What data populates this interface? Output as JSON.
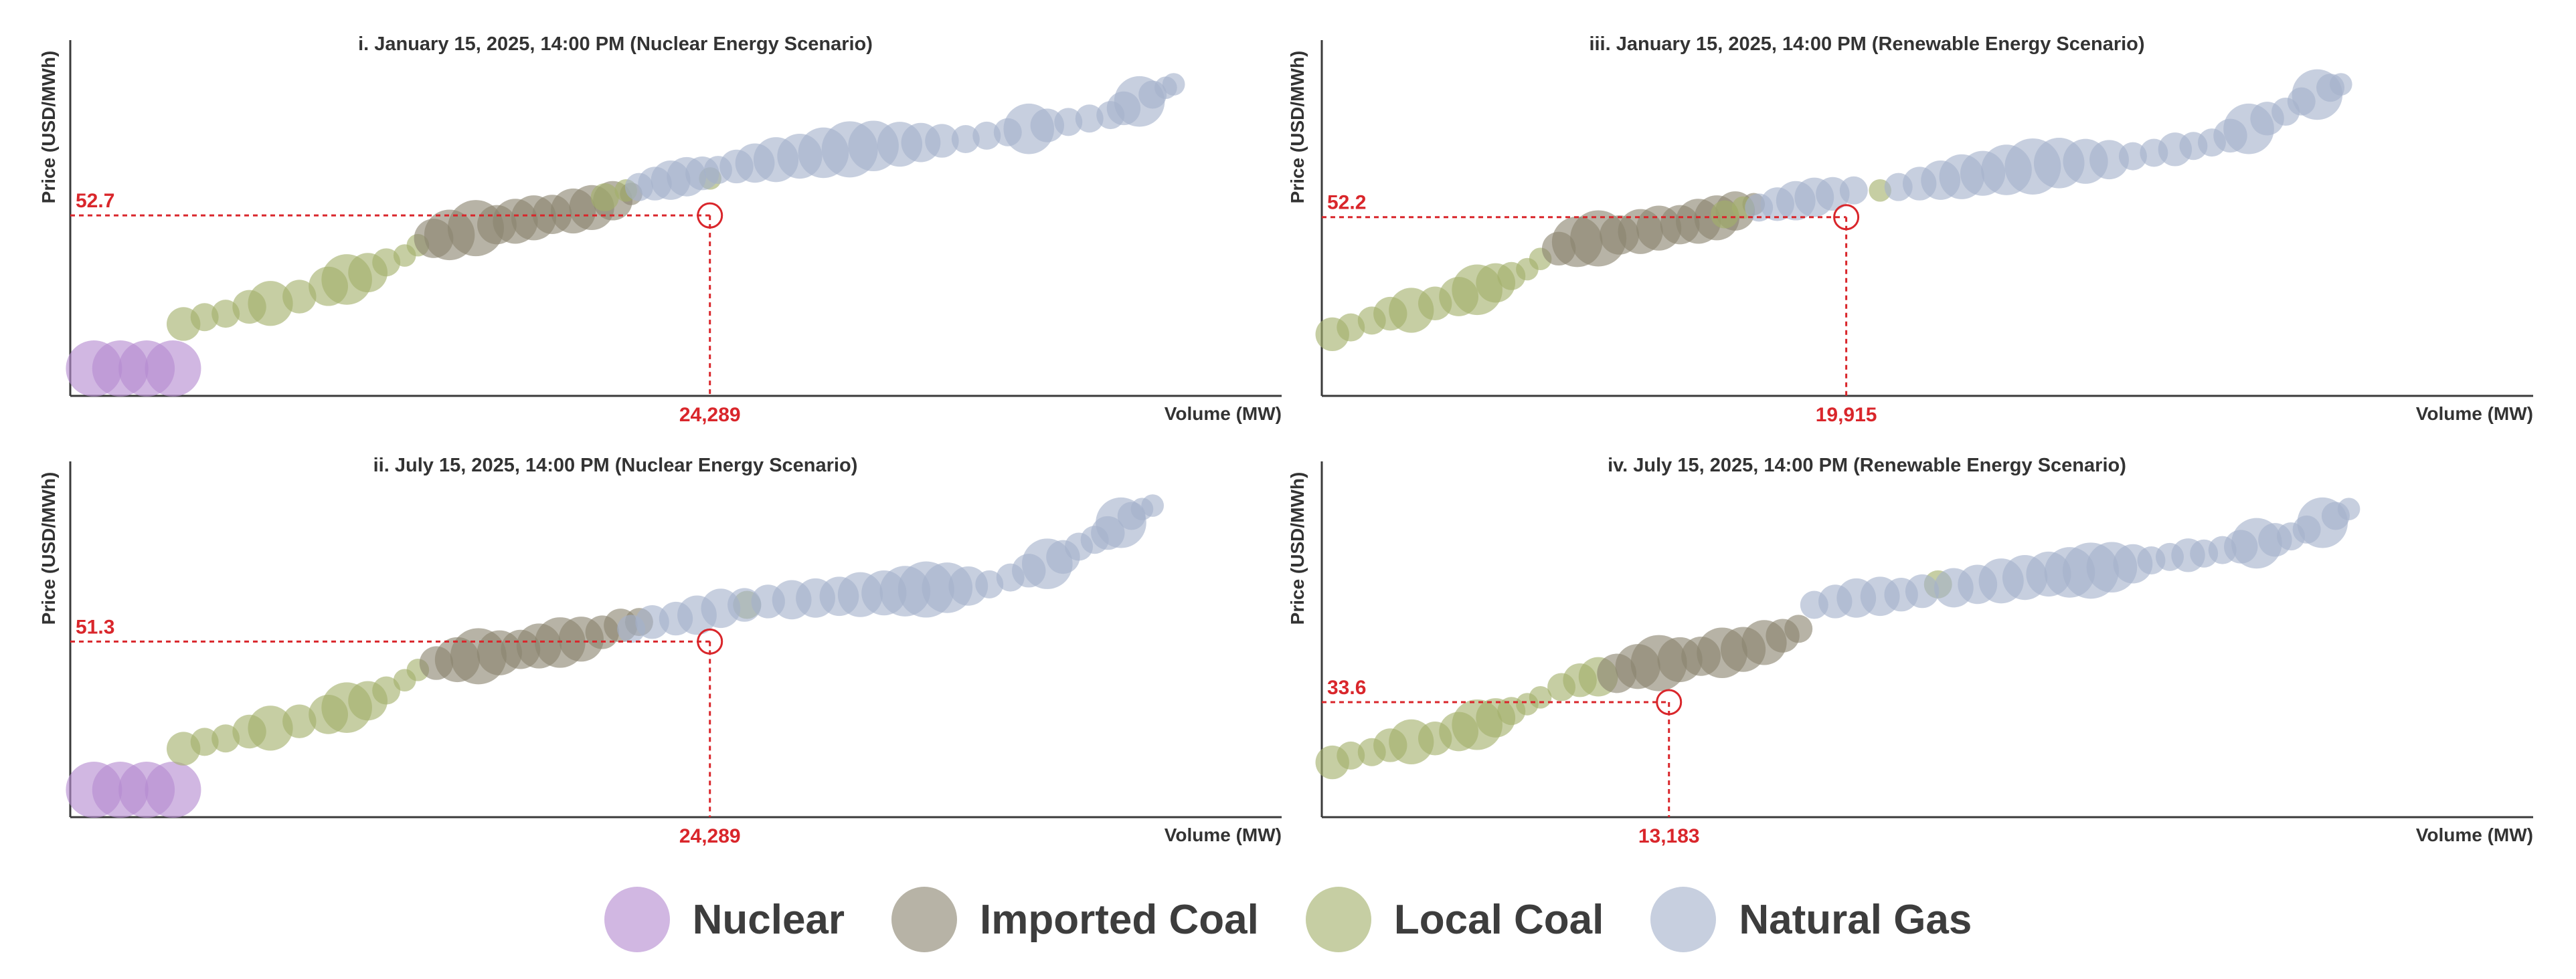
{
  "colors": {
    "nuclear": "#b48bd1",
    "imported_coal": "#8a8470",
    "local_coal": "#a3b06b",
    "natural_gas": "#a4b2cc",
    "marker": "#d9262b",
    "axis": "#3a3a3a"
  },
  "legend": {
    "items": [
      {
        "key": "nuclear",
        "label": "Nuclear"
      },
      {
        "key": "imported_coal",
        "label": "Imported Coal"
      },
      {
        "key": "local_coal",
        "label": "Local Coal"
      },
      {
        "key": "natural_gas",
        "label": "Natural Gas"
      }
    ]
  },
  "chart_data": [
    {
      "type": "scatter",
      "title": "i. January 15, 2025, 14:00 PM (Nuclear Energy Scenario)",
      "xlabel": "Volume (MW)",
      "ylabel": "Price (USD/MWh)",
      "xlim": [
        0,
        46000
      ],
      "ylim": [
        0,
        100
      ],
      "grid": false,
      "clearing_point": {
        "x": 24289,
        "y": 52.7,
        "x_label": "24,289",
        "y_label": "52.7"
      },
      "series": [
        {
          "fuel": "nuclear",
          "x": [
            900,
            1900,
            2900,
            3900
          ],
          "y": [
            8,
            8,
            8,
            8
          ],
          "size": [
            1.0,
            1.0,
            1.0,
            1.0
          ]
        },
        {
          "fuel": "local_coal",
          "x": [
            4300,
            5100,
            5900,
            6800,
            7600,
            8700,
            9800,
            10500,
            11300,
            12000,
            12700,
            13200
          ],
          "y": [
            21,
            23,
            24,
            26,
            27,
            29,
            32,
            34,
            36,
            39,
            41,
            44
          ],
          "size": [
            0.6,
            0.5,
            0.5,
            0.6,
            0.8,
            0.6,
            0.7,
            0.9,
            0.7,
            0.5,
            0.4,
            0.4
          ]
        },
        {
          "fuel": "imported_coal",
          "x": [
            13800,
            14400,
            15400,
            16200,
            16900,
            17600,
            18300,
            19100,
            19800,
            20600,
            21300
          ],
          "y": [
            46,
            47,
            49,
            50,
            51,
            52,
            53,
            54,
            55,
            57,
            59
          ],
          "size": [
            0.7,
            0.9,
            1.0,
            0.7,
            0.8,
            0.8,
            0.7,
            0.8,
            0.8,
            0.7,
            0.4
          ]
        },
        {
          "fuel": "local_coal",
          "x": [
            20300,
            21100,
            24300
          ],
          "y": [
            58,
            60,
            63.5
          ],
          "size": [
            0.5,
            0.4,
            0.4
          ]
        },
        {
          "fuel": "natural_gas",
          "x": [
            21600,
            22200,
            22800,
            23400,
            24000,
            24600,
            25300,
            26000,
            26800,
            27700,
            28600,
            29600,
            30500,
            31500,
            32300,
            33100,
            34000,
            34800,
            35600,
            36400,
            37100,
            37900,
            38700,
            39500,
            40000,
            40600,
            41100,
            41600,
            41900
          ],
          "y": [
            61,
            62,
            63,
            64,
            65,
            66,
            67,
            68,
            69,
            70,
            71,
            72,
            73,
            73.5,
            74,
            74.5,
            75,
            76,
            77,
            78,
            79,
            80,
            81,
            82,
            84,
            86,
            88,
            90,
            91
          ],
          "size": [
            0.5,
            0.6,
            0.7,
            0.7,
            0.6,
            0.5,
            0.6,
            0.7,
            0.8,
            0.8,
            0.9,
            1.0,
            0.9,
            0.8,
            0.7,
            0.6,
            0.5,
            0.5,
            0.5,
            0.9,
            0.6,
            0.5,
            0.5,
            0.5,
            0.6,
            0.9,
            0.5,
            0.4,
            0.4
          ]
        }
      ]
    },
    {
      "type": "scatter",
      "title": "ii. July 15, 2025, 14:00 PM (Nuclear Energy Scenario)",
      "xlabel": "Volume (MW)",
      "ylabel": "Price (USD/MWh)",
      "xlim": [
        0,
        46000
      ],
      "ylim": [
        0,
        100
      ],
      "grid": false,
      "clearing_point": {
        "x": 24289,
        "y": 51.3,
        "x_label": "24,289",
        "y_label": "51.3"
      },
      "series": [
        {
          "fuel": "nuclear",
          "x": [
            900,
            1900,
            2900,
            3900
          ],
          "y": [
            8,
            8,
            8,
            8
          ],
          "size": [
            1.0,
            1.0,
            1.0,
            1.0
          ]
        },
        {
          "fuel": "local_coal",
          "x": [
            4300,
            5100,
            5900,
            6800,
            7600,
            8700,
            9800,
            10500,
            11300,
            12000,
            12700,
            13200
          ],
          "y": [
            20,
            22,
            23,
            25,
            26,
            28,
            30,
            32,
            34,
            37,
            40,
            43
          ],
          "size": [
            0.6,
            0.5,
            0.5,
            0.6,
            0.8,
            0.6,
            0.7,
            0.9,
            0.7,
            0.5,
            0.4,
            0.4
          ]
        },
        {
          "fuel": "imported_coal",
          "x": [
            13900,
            14700,
            15500,
            16300,
            17100,
            17800,
            18600,
            19400,
            20200,
            20900,
            21600
          ],
          "y": [
            45,
            46,
            47,
            48,
            49,
            50,
            51,
            52,
            54,
            56,
            57
          ],
          "size": [
            0.6,
            0.8,
            1.0,
            0.8,
            0.7,
            0.8,
            0.9,
            0.8,
            0.6,
            0.6,
            0.5
          ]
        },
        {
          "fuel": "local_coal",
          "x": [
            25700
          ],
          "y": [
            62
          ],
          "size": [
            0.5
          ]
        },
        {
          "fuel": "natural_gas",
          "x": [
            21300,
            22100,
            23000,
            23800,
            24700,
            25600,
            26500,
            27400,
            28300,
            29200,
            30000,
            30900,
            31700,
            32500,
            33300,
            34100,
            34900,
            35700,
            36400,
            37100,
            37700,
            38300,
            38900,
            39400,
            39900,
            40300,
            40700,
            41100
          ],
          "y": [
            55,
            57,
            58,
            59,
            61,
            62,
            63,
            63.5,
            64,
            64.5,
            65,
            65.5,
            66,
            66.5,
            67,
            67.5,
            68,
            70,
            72,
            74,
            76,
            79,
            81,
            83,
            86,
            88,
            90,
            91
          ],
          "size": [
            0.5,
            0.6,
            0.6,
            0.7,
            0.7,
            0.6,
            0.6,
            0.7,
            0.7,
            0.7,
            0.8,
            0.8,
            0.9,
            1.0,
            0.9,
            0.7,
            0.5,
            0.5,
            0.6,
            0.9,
            0.6,
            0.5,
            0.5,
            0.6,
            0.9,
            0.5,
            0.4,
            0.4
          ]
        }
      ]
    },
    {
      "type": "scatter",
      "title": "iii. January 15, 2025, 14:00 PM (Renewable Energy Scenario)",
      "xlabel": "Volume (MW)",
      "ylabel": "Price (USD/MWh)",
      "xlim": [
        0,
        46000
      ],
      "ylim": [
        0,
        100
      ],
      "grid": false,
      "clearing_point": {
        "x": 19915,
        "y": 52.2,
        "x_label": "19,915",
        "y_label": "52.2"
      },
      "series": [
        {
          "fuel": "local_coal",
          "x": [
            400,
            1100,
            1900,
            2600,
            3400,
            4300,
            5200,
            5900,
            6600,
            7200,
            7800,
            8300
          ],
          "y": [
            18,
            20,
            22,
            24,
            25,
            27,
            29,
            31,
            33,
            35,
            37,
            40
          ],
          "size": [
            0.6,
            0.5,
            0.5,
            0.6,
            0.8,
            0.6,
            0.7,
            0.9,
            0.7,
            0.5,
            0.4,
            0.4
          ]
        },
        {
          "fuel": "imported_coal",
          "x": [
            9000,
            9700,
            10500,
            11300,
            12100,
            12800,
            13600,
            14300,
            15000,
            15700,
            16400
          ],
          "y": [
            43,
            45,
            46,
            47,
            48,
            49,
            50,
            51,
            52,
            54,
            56
          ],
          "size": [
            0.6,
            0.9,
            1.0,
            0.7,
            0.8,
            0.8,
            0.7,
            0.8,
            0.8,
            0.7,
            0.4
          ]
        },
        {
          "fuel": "local_coal",
          "x": [
            15300,
            16000,
            21200
          ],
          "y": [
            53,
            55,
            60
          ],
          "size": [
            0.5,
            0.4,
            0.4
          ]
        },
        {
          "fuel": "natural_gas",
          "x": [
            16600,
            17300,
            18000,
            18700,
            19400,
            20200,
            21900,
            22700,
            23500,
            24300,
            25100,
            26000,
            27000,
            28000,
            29000,
            29900,
            30800,
            31600,
            32400,
            33100,
            33800,
            34500,
            35200,
            35900,
            36600,
            37200,
            37800,
            38300,
            38700
          ],
          "y": [
            55,
            56,
            57,
            58,
            59,
            60,
            61,
            62,
            63,
            64,
            65,
            66,
            67,
            68,
            68.5,
            69,
            70,
            71,
            72,
            73,
            74,
            76,
            78,
            81,
            83,
            86,
            88,
            90,
            91
          ],
          "size": [
            0.5,
            0.6,
            0.7,
            0.7,
            0.6,
            0.5,
            0.5,
            0.6,
            0.7,
            0.8,
            0.8,
            0.9,
            1.0,
            0.9,
            0.8,
            0.7,
            0.5,
            0.5,
            0.6,
            0.5,
            0.5,
            0.6,
            0.9,
            0.6,
            0.5,
            0.5,
            0.9,
            0.5,
            0.4
          ]
        }
      ]
    },
    {
      "type": "scatter",
      "title": "iv. July 15, 2025, 14:00 PM (Renewable Energy Scenario)",
      "xlabel": "Volume (MW)",
      "ylabel": "Price (USD/MWh)",
      "xlim": [
        0,
        46000
      ],
      "ylim": [
        0,
        100
      ],
      "grid": false,
      "clearing_point": {
        "x": 13183,
        "y": 33.6,
        "x_label": "13,183",
        "y_label": "33.6"
      },
      "series": [
        {
          "fuel": "local_coal",
          "x": [
            400,
            1100,
            1900,
            2600,
            3400,
            4300,
            5200,
            5900,
            6600,
            7200,
            7800,
            8300
          ],
          "y": [
            16,
            18,
            19,
            21,
            22,
            23,
            25,
            27,
            29,
            31,
            33,
            35
          ],
          "size": [
            0.6,
            0.5,
            0.5,
            0.6,
            0.8,
            0.6,
            0.7,
            0.9,
            0.7,
            0.5,
            0.4,
            0.4
          ]
        },
        {
          "fuel": "local_coal",
          "x": [
            9100,
            9800,
            10500
          ],
          "y": [
            38,
            40,
            41
          ],
          "size": [
            0.5,
            0.6,
            0.7
          ]
        },
        {
          "fuel": "imported_coal",
          "x": [
            11200,
            12000,
            12800,
            13600,
            14400,
            15200,
            16000,
            16800,
            17500,
            18100
          ],
          "y": [
            42,
            44,
            45,
            46,
            47,
            48,
            49,
            51,
            53,
            55
          ],
          "size": [
            0.7,
            0.8,
            1.0,
            0.8,
            0.7,
            0.9,
            0.8,
            0.8,
            0.6,
            0.5
          ]
        },
        {
          "fuel": "local_coal",
          "x": [
            23400
          ],
          "y": [
            68
          ],
          "size": [
            0.5
          ]
        },
        {
          "fuel": "natural_gas",
          "x": [
            18700,
            19500,
            20300,
            21200,
            22000,
            22800,
            24000,
            24900,
            25800,
            26700,
            27600,
            28400,
            29200,
            30000,
            30800,
            31500,
            32200,
            32900,
            33500,
            34200,
            34900,
            35500,
            36200,
            36800,
            37400,
            38000,
            38500,
            39000
          ],
          "y": [
            62,
            63,
            64,
            64.5,
            65,
            66,
            67,
            68,
            69,
            70,
            71,
            71.5,
            72,
            73,
            74,
            75,
            76,
            76.5,
            77,
            78,
            79,
            80,
            81,
            82,
            84,
            86,
            88,
            90
          ],
          "size": [
            0.5,
            0.6,
            0.7,
            0.7,
            0.6,
            0.6,
            0.7,
            0.7,
            0.8,
            0.8,
            0.8,
            0.9,
            1.0,
            0.9,
            0.7,
            0.5,
            0.5,
            0.6,
            0.5,
            0.5,
            0.6,
            0.9,
            0.6,
            0.5,
            0.5,
            0.9,
            0.5,
            0.4
          ]
        }
      ]
    }
  ]
}
